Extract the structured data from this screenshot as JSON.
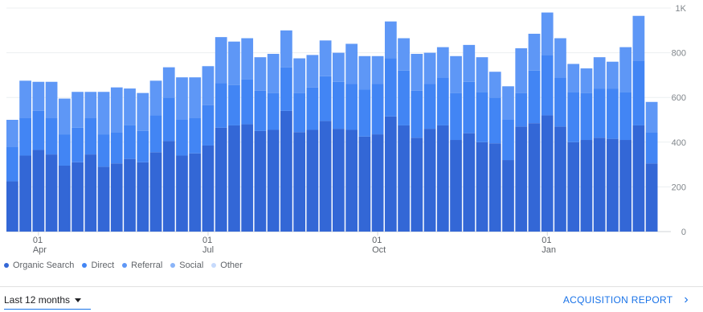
{
  "chart_data": {
    "type": "bar",
    "stacked": true,
    "ylim": [
      0,
      1000
    ],
    "y_ticks": [
      {
        "value": 0,
        "label": "0"
      },
      {
        "value": 200,
        "label": "200"
      },
      {
        "value": 400,
        "label": "400"
      },
      {
        "value": 600,
        "label": "600"
      },
      {
        "value": 800,
        "label": "800"
      },
      {
        "value": 1000,
        "label": "1K"
      }
    ],
    "x_ticks": [
      {
        "index": 2,
        "day": "01",
        "month": "Apr"
      },
      {
        "index": 15,
        "day": "01",
        "month": "Jul"
      },
      {
        "index": 28,
        "day": "01",
        "month": "Oct"
      },
      {
        "index": 41,
        "day": "01",
        "month": "Jan"
      }
    ],
    "grid": true,
    "legend_position": "bottom-left",
    "series": [
      {
        "name": "Organic Search",
        "color": "#3367d6",
        "values": [
          225,
          340,
          365,
          345,
          295,
          310,
          345,
          290,
          305,
          325,
          310,
          355,
          405,
          340,
          350,
          385,
          465,
          475,
          480,
          450,
          455,
          540,
          445,
          455,
          495,
          460,
          455,
          425,
          435,
          515,
          475,
          420,
          460,
          475,
          410,
          440,
          400,
          395,
          320,
          470,
          485,
          520,
          470,
          400,
          410,
          420,
          415,
          410,
          475,
          305
        ]
      },
      {
        "name": "Direct",
        "color": "#4285f4",
        "values": [
          155,
          170,
          175,
          165,
          140,
          155,
          165,
          145,
          140,
          150,
          140,
          165,
          195,
          160,
          160,
          180,
          200,
          180,
          200,
          180,
          165,
          195,
          175,
          190,
          200,
          210,
          205,
          210,
          225,
          260,
          245,
          210,
          200,
          215,
          210,
          230,
          225,
          205,
          180,
          150,
          235,
          270,
          220,
          225,
          210,
          220,
          225,
          215,
          290,
          140
        ]
      },
      {
        "name": "Referral",
        "color": "#5e97f6",
        "values": [
          120,
          165,
          130,
          160,
          160,
          160,
          115,
          190,
          200,
          165,
          170,
          155,
          135,
          190,
          180,
          175,
          205,
          195,
          185,
          150,
          175,
          165,
          155,
          145,
          160,
          130,
          180,
          150,
          125,
          165,
          145,
          165,
          140,
          135,
          165,
          165,
          155,
          115,
          150,
          200,
          165,
          190,
          175,
          125,
          110,
          140,
          120,
          200,
          200,
          135
        ]
      },
      {
        "name": "Social",
        "color": "#8ab4f8",
        "values": [
          0,
          0,
          0,
          0,
          0,
          0,
          0,
          0,
          0,
          0,
          0,
          0,
          0,
          0,
          0,
          0,
          0,
          0,
          0,
          0,
          0,
          0,
          0,
          0,
          0,
          0,
          0,
          0,
          0,
          0,
          0,
          0,
          0,
          0,
          0,
          0,
          0,
          0,
          0,
          0,
          0,
          0,
          0,
          0,
          0,
          0,
          0,
          0,
          0,
          0
        ]
      },
      {
        "name": "Other",
        "color": "#c6dafc",
        "values": [
          0,
          0,
          0,
          0,
          0,
          0,
          0,
          0,
          0,
          0,
          0,
          0,
          0,
          0,
          0,
          0,
          0,
          0,
          0,
          0,
          0,
          0,
          0,
          0,
          0,
          0,
          0,
          0,
          0,
          0,
          0,
          0,
          0,
          0,
          0,
          0,
          0,
          0,
          0,
          0,
          0,
          0,
          0,
          0,
          0,
          0,
          0,
          0,
          0,
          0
        ]
      }
    ]
  },
  "controls": {
    "date_range": "Last 12 months",
    "report_link": "ACQUISITION REPORT",
    "report_chevron": "›"
  }
}
